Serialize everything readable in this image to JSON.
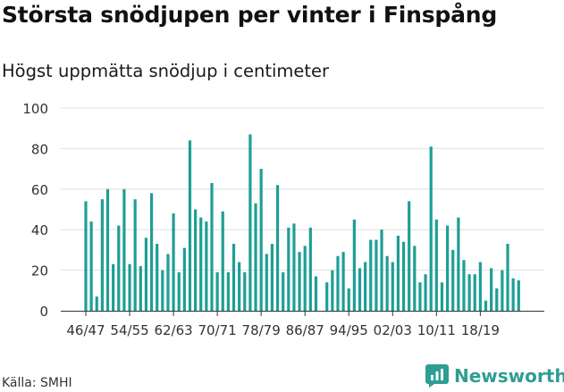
{
  "header": {
    "title": "Största snödjupen per vinter i Finspång",
    "subtitle": "Högst uppmätta snödjup i centimeter"
  },
  "footer": {
    "source": "Källa: SMHI",
    "brand": "Newsworthy"
  },
  "colors": {
    "bar": "#1f9e96",
    "brand": "#2e9e93",
    "grid": "#e0e0e0",
    "axis": "#333333"
  },
  "chart_data": {
    "type": "bar",
    "title": "Största snödjupen per vinter i Finspång",
    "subtitle": "Högst uppmätta snödjup i centimeter",
    "xlabel": "",
    "ylabel": "",
    "ylim": [
      0,
      100
    ],
    "yticks": [
      0,
      20,
      40,
      60,
      80,
      100
    ],
    "grid": true,
    "x_tick_labels": [
      "46/47",
      "54/55",
      "62/63",
      "70/71",
      "78/79",
      "86/87",
      "94/95",
      "02/03",
      "10/11",
      "18/19"
    ],
    "x_tick_every": 8,
    "series": [
      {
        "values": [
          54,
          44,
          7,
          55,
          60,
          23,
          42,
          60,
          23,
          55,
          22,
          36,
          58,
          33,
          20,
          28,
          48,
          19,
          31,
          84,
          50,
          46,
          44,
          63,
          19,
          49,
          19,
          33,
          24,
          19,
          87,
          53,
          70,
          28,
          33,
          62,
          19,
          41,
          43,
          29,
          32,
          41,
          17,
          null,
          14,
          20,
          27,
          29,
          11,
          45,
          21,
          24,
          35,
          35,
          40,
          27,
          24,
          37,
          34,
          54,
          32,
          14,
          18,
          81,
          45,
          14,
          42,
          30,
          46,
          25,
          18,
          18,
          24,
          5,
          21,
          11,
          20,
          33,
          16,
          15
        ]
      }
    ]
  }
}
